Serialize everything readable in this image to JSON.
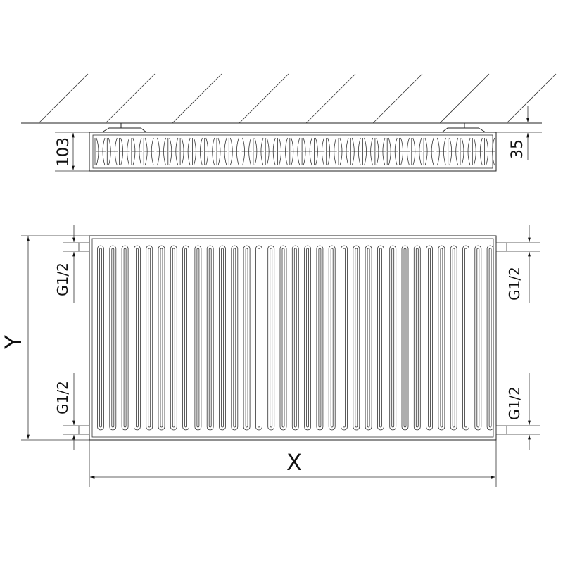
{
  "dimensions": {
    "depth_label": "103",
    "wall_gap_label": "35",
    "height_label": "Y",
    "width_label": "X",
    "connection_left_top": "G1/2",
    "connection_left_bottom": "G1/2",
    "connection_right_top": "G1/2",
    "connection_right_bottom": "G1/2"
  },
  "colors": {
    "line": "#222222",
    "background": "#ffffff"
  }
}
